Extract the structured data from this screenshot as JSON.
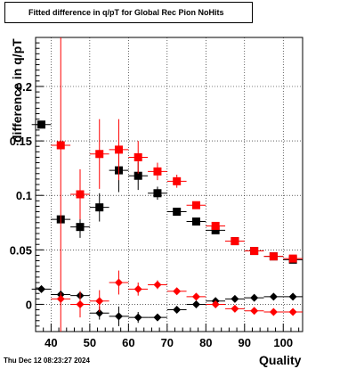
{
  "chart_data": {
    "type": "scatter",
    "title": "Fitted difference in q/pT for Global Rec Pion NoHits",
    "xlabel": "Quality",
    "ylabel": "difference in q/pT",
    "xlim": [
      36,
      105
    ],
    "ylim": [
      -0.025,
      0.245
    ],
    "x_ticks": [
      40,
      50,
      60,
      70,
      80,
      90,
      100
    ],
    "y_ticks": [
      0,
      0.05,
      0.1,
      0.15,
      0.2
    ],
    "y_tick_labels": [
      "0",
      "0.05",
      "0.1",
      "0.15",
      "0.2"
    ],
    "grid": true,
    "series": [
      {
        "marker": "square",
        "color": "#000000",
        "points": [
          {
            "x": 37.5,
            "y": 0.165,
            "err": 0.0
          },
          {
            "x": 42.5,
            "y": 0.078,
            "err": 0.0
          },
          {
            "x": 47.5,
            "y": 0.071,
            "err": 0.01
          },
          {
            "x": 52.5,
            "y": 0.089,
            "err": 0.013
          },
          {
            "x": 57.5,
            "y": 0.123,
            "err": 0.02
          },
          {
            "x": 62.5,
            "y": 0.118,
            "err": 0.013
          },
          {
            "x": 67.5,
            "y": 0.102,
            "err": 0.006
          },
          {
            "x": 72.5,
            "y": 0.085,
            "err": 0.003
          },
          {
            "x": 77.5,
            "y": 0.076,
            "err": 0.002
          },
          {
            "x": 82.5,
            "y": 0.068,
            "err": 0.002
          },
          {
            "x": 87.5,
            "y": 0.058,
            "err": 0.0015
          },
          {
            "x": 92.5,
            "y": 0.049,
            "err": 0.0015
          },
          {
            "x": 97.5,
            "y": 0.044,
            "err": 0.001
          },
          {
            "x": 102.5,
            "y": 0.041,
            "err": 0.001
          }
        ]
      },
      {
        "marker": "square",
        "color": "#ff0000",
        "points": [
          {
            "x": 42.5,
            "y": 0.146,
            "err": 0.186
          },
          {
            "x": 47.5,
            "y": 0.101,
            "err": 0.023
          },
          {
            "x": 52.5,
            "y": 0.138,
            "err": 0.032
          },
          {
            "x": 57.5,
            "y": 0.142,
            "err": 0.028
          },
          {
            "x": 62.5,
            "y": 0.135,
            "err": 0.015
          },
          {
            "x": 67.5,
            "y": 0.122,
            "err": 0.008
          },
          {
            "x": 72.5,
            "y": 0.113,
            "err": 0.006
          },
          {
            "x": 77.5,
            "y": 0.091,
            "err": 0.003
          },
          {
            "x": 82.5,
            "y": 0.072,
            "err": 0.002
          },
          {
            "x": 87.5,
            "y": 0.058,
            "err": 0.0015
          },
          {
            "x": 92.5,
            "y": 0.049,
            "err": 0.0015
          },
          {
            "x": 97.5,
            "y": 0.044,
            "err": 0.001
          },
          {
            "x": 102.5,
            "y": 0.042,
            "err": 0.001
          }
        ]
      },
      {
        "marker": "diamond",
        "color": "#000000",
        "points": [
          {
            "x": 37.5,
            "y": 0.014,
            "err": 0.0
          },
          {
            "x": 42.5,
            "y": 0.009,
            "err": 0.0
          },
          {
            "x": 47.5,
            "y": 0.008,
            "err": 0.004
          },
          {
            "x": 52.5,
            "y": -0.008,
            "err": 0.006
          },
          {
            "x": 57.5,
            "y": -0.011,
            "err": 0.009
          },
          {
            "x": 62.5,
            "y": -0.012,
            "err": 0.005
          },
          {
            "x": 67.5,
            "y": -0.012,
            "err": 0.003
          },
          {
            "x": 72.5,
            "y": -0.005,
            "err": 0.002
          },
          {
            "x": 77.5,
            "y": 0.0,
            "err": 0.0015
          },
          {
            "x": 82.5,
            "y": 0.003,
            "err": 0.001
          },
          {
            "x": 87.5,
            "y": 0.005,
            "err": 0.001
          },
          {
            "x": 92.5,
            "y": 0.006,
            "err": 0.0008
          },
          {
            "x": 97.5,
            "y": 0.007,
            "err": 0.0008
          },
          {
            "x": 102.5,
            "y": 0.007,
            "err": 0.0008
          }
        ]
      },
      {
        "marker": "diamond",
        "color": "#ff0000",
        "points": [
          {
            "x": 42.5,
            "y": 0.005,
            "err": 0.006
          },
          {
            "x": 47.5,
            "y": 0.0,
            "err": 0.012
          },
          {
            "x": 52.5,
            "y": 0.003,
            "err": 0.01
          },
          {
            "x": 57.5,
            "y": 0.02,
            "err": 0.011
          },
          {
            "x": 62.5,
            "y": 0.014,
            "err": 0.006
          },
          {
            "x": 67.5,
            "y": 0.018,
            "err": 0.004
          },
          {
            "x": 72.5,
            "y": 0.012,
            "err": 0.002
          },
          {
            "x": 77.5,
            "y": 0.007,
            "err": 0.0015
          },
          {
            "x": 82.5,
            "y": 0.0,
            "err": 0.001
          },
          {
            "x": 87.5,
            "y": -0.004,
            "err": 0.001
          },
          {
            "x": 92.5,
            "y": -0.006,
            "err": 0.0008
          },
          {
            "x": 97.5,
            "y": -0.007,
            "err": 0.0008
          },
          {
            "x": 102.5,
            "y": -0.007,
            "err": 0.0008
          }
        ]
      }
    ]
  },
  "footer": {
    "timestamp": "Thu Dec 12 08:23:27 2024"
  }
}
